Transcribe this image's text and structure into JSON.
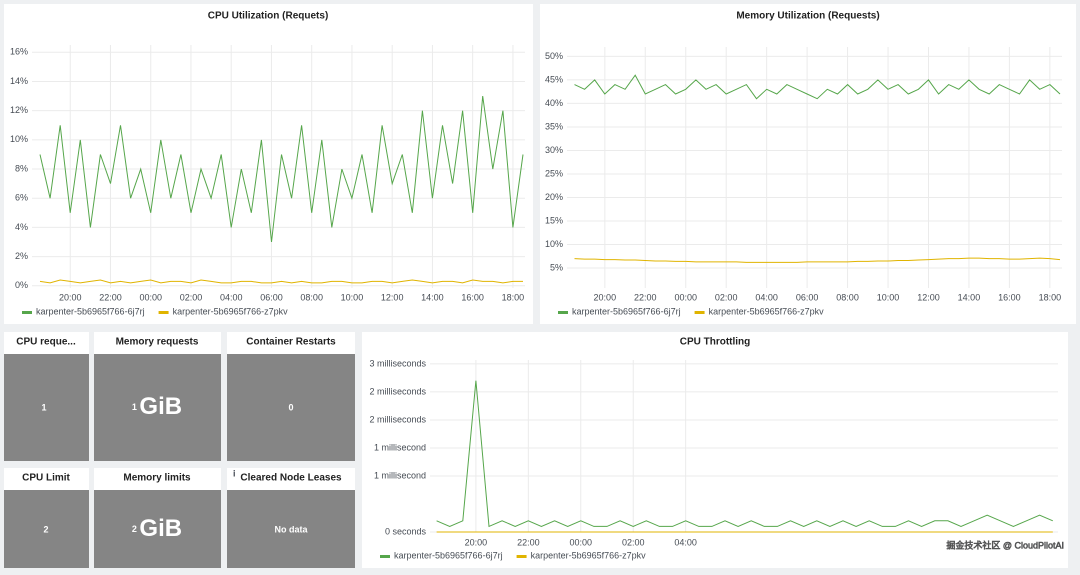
{
  "chart_data": [
    {
      "type": "line",
      "title": "CPU Utilization (Requets)",
      "x": [
        18.5,
        19,
        19.5,
        20,
        20.5,
        21,
        21.5,
        22,
        22.5,
        23,
        23.5,
        24,
        24.5,
        25,
        25.5,
        26,
        26.5,
        27,
        27.5,
        28,
        28.5,
        29,
        29.5,
        30,
        30.5,
        31,
        31.5,
        32,
        32.5,
        33,
        33.5,
        34,
        34.5,
        35,
        35.5,
        36,
        36.5,
        37,
        37.5,
        38,
        38.5,
        39,
        39.5,
        40,
        40.5,
        41,
        41.5,
        42,
        42.5
      ],
      "xlim": [
        18.1,
        42.6
      ],
      "xticks": [
        {
          "value": 20,
          "label": "20:00"
        },
        {
          "value": 22,
          "label": "22:00"
        },
        {
          "value": 24,
          "label": "00:00"
        },
        {
          "value": 26,
          "label": "02:00"
        },
        {
          "value": 28,
          "label": "04:00"
        },
        {
          "value": 30,
          "label": "06:00"
        },
        {
          "value": 32,
          "label": "08:00"
        },
        {
          "value": 34,
          "label": "10:00"
        },
        {
          "value": 36,
          "label": "12:00"
        },
        {
          "value": 38,
          "label": "14:00"
        },
        {
          "value": 40,
          "label": "16:00"
        },
        {
          "value": 42,
          "label": "18:00"
        }
      ],
      "ylim": [
        -0.15,
        16.5
      ],
      "yticks": [
        {
          "value": 0,
          "label": "0%"
        },
        {
          "value": 2,
          "label": "2%"
        },
        {
          "value": 4,
          "label": "4%"
        },
        {
          "value": 6,
          "label": "6%"
        },
        {
          "value": 8,
          "label": "8%"
        },
        {
          "value": 10,
          "label": "10%"
        },
        {
          "value": 12,
          "label": "12%"
        },
        {
          "value": 14,
          "label": "14%"
        },
        {
          "value": 16,
          "label": "16%"
        }
      ],
      "grid": true,
      "series": [
        {
          "name": "karpenter-5b6965f766-6j7rj",
          "color": "#56a64b",
          "values": [
            9,
            6,
            11,
            5,
            10,
            4,
            9,
            7,
            11,
            6,
            8,
            5,
            10,
            6,
            9,
            5,
            8,
            6,
            9,
            4,
            8,
            5,
            10,
            3,
            9,
            6,
            11,
            5,
            10,
            4,
            8,
            6,
            9,
            5,
            11,
            7,
            9,
            5,
            12,
            6,
            11,
            7,
            12,
            5,
            13,
            8,
            12,
            4,
            9
          ]
        },
        {
          "name": "karpenter-5b6965f766-z7pkv",
          "color": "#e0b400",
          "values": [
            0.3,
            0.2,
            0.4,
            0.3,
            0.2,
            0.3,
            0.4,
            0.2,
            0.3,
            0.2,
            0.3,
            0.4,
            0.2,
            0.3,
            0.3,
            0.2,
            0.4,
            0.3,
            0.2,
            0.2,
            0.3,
            0.3,
            0.2,
            0.2,
            0.3,
            0.2,
            0.3,
            0.2,
            0.2,
            0.3,
            0.3,
            0.2,
            0.2,
            0.3,
            0.3,
            0.2,
            0.3,
            0.4,
            0.3,
            0.2,
            0.3,
            0.3,
            0.2,
            0.4,
            0.3,
            0.3,
            0.2,
            0.3,
            0.3
          ]
        }
      ]
    },
    {
      "type": "line",
      "title": "Memory Utilization (Requests)",
      "x": [
        18.5,
        19,
        19.5,
        20,
        20.5,
        21,
        21.5,
        22,
        22.5,
        23,
        23.5,
        24,
        24.5,
        25,
        25.5,
        26,
        26.5,
        27,
        27.5,
        28,
        28.5,
        29,
        29.5,
        30,
        30.5,
        31,
        31.5,
        32,
        32.5,
        33,
        33.5,
        34,
        34.5,
        35,
        35.5,
        36,
        36.5,
        37,
        37.5,
        38,
        38.5,
        39,
        39.5,
        40,
        40.5,
        41,
        41.5,
        42,
        42.5
      ],
      "xlim": [
        18.13,
        42.6
      ],
      "xticks": [
        {
          "value": 20,
          "label": "20:00"
        },
        {
          "value": 22,
          "label": "22:00"
        },
        {
          "value": 24,
          "label": "00:00"
        },
        {
          "value": 26,
          "label": "02:00"
        },
        {
          "value": 28,
          "label": "04:00"
        },
        {
          "value": 30,
          "label": "06:00"
        },
        {
          "value": 32,
          "label": "08:00"
        },
        {
          "value": 34,
          "label": "10:00"
        },
        {
          "value": 36,
          "label": "12:00"
        },
        {
          "value": 38,
          "label": "14:00"
        },
        {
          "value": 40,
          "label": "16:00"
        },
        {
          "value": 42,
          "label": "18:00"
        }
      ],
      "ylim": [
        0.75,
        52
      ],
      "yticks": [
        {
          "value": 5,
          "label": "5%"
        },
        {
          "value": 10,
          "label": "10%"
        },
        {
          "value": 15,
          "label": "15%"
        },
        {
          "value": 20,
          "label": "20%"
        },
        {
          "value": 25,
          "label": "25%"
        },
        {
          "value": 30,
          "label": "30%"
        },
        {
          "value": 35,
          "label": "35%"
        },
        {
          "value": 40,
          "label": "40%"
        },
        {
          "value": 45,
          "label": "45%"
        },
        {
          "value": 50,
          "label": "50%"
        }
      ],
      "grid": true,
      "series": [
        {
          "name": "karpenter-5b6965f766-6j7rj",
          "color": "#56a64b",
          "values": [
            44,
            43,
            45,
            42,
            44,
            43,
            46,
            42,
            43,
            44,
            42,
            43,
            45,
            43,
            44,
            42,
            43,
            44,
            41,
            43,
            42,
            44,
            43,
            42,
            41,
            43,
            42,
            44,
            42,
            43,
            45,
            43,
            44,
            42,
            43,
            45,
            42,
            44,
            43,
            45,
            43,
            42,
            44,
            43,
            42,
            45,
            43,
            44,
            42
          ]
        },
        {
          "name": "karpenter-5b6965f766-z7pkv",
          "color": "#e0b400",
          "values": [
            7.0,
            6.9,
            6.9,
            6.8,
            6.8,
            6.7,
            6.7,
            6.6,
            6.5,
            6.5,
            6.4,
            6.4,
            6.3,
            6.3,
            6.3,
            6.3,
            6.3,
            6.2,
            6.2,
            6.2,
            6.2,
            6.2,
            6.2,
            6.3,
            6.3,
            6.3,
            6.3,
            6.3,
            6.4,
            6.4,
            6.5,
            6.5,
            6.6,
            6.6,
            6.7,
            6.8,
            6.9,
            7.0,
            7.0,
            7.1,
            7.1,
            7.0,
            7.0,
            6.9,
            6.9,
            7.0,
            7.1,
            7.0,
            6.8
          ]
        }
      ]
    },
    {
      "type": "line",
      "title": "CPU Throttling",
      "x": [
        18.5,
        19,
        19.5,
        20,
        20.5,
        21,
        21.5,
        22,
        22.5,
        23,
        23.5,
        24,
        24.5,
        25,
        25.5,
        26,
        26.5,
        27,
        27.5,
        28,
        28.5,
        29,
        29.5,
        30,
        30.5,
        31,
        31.5,
        32,
        32.5,
        33,
        33.5,
        34,
        34.5,
        35,
        35.5,
        36,
        36.5,
        37,
        37.5,
        38,
        38.5,
        39,
        39.5,
        40,
        40.5,
        41,
        41.5,
        42
      ],
      "xlim": [
        18.25,
        42.2
      ],
      "xticks": [
        {
          "value": 20,
          "label": "20:00"
        },
        {
          "value": 22,
          "label": "22:00"
        },
        {
          "value": 24,
          "label": "00:00"
        },
        {
          "value": 26,
          "label": "02:00"
        },
        {
          "value": 28,
          "label": "04:00"
        }
      ],
      "ylim": [
        0,
        0.00307
      ],
      "yticks": [
        {
          "value": 0,
          "label": "0 seconds"
        },
        {
          "value": 0.001,
          "label": "1 millisecond"
        },
        {
          "value": 0.0015,
          "label": "1 millisecond"
        },
        {
          "value": 0.002,
          "label": "2 milliseconds"
        },
        {
          "value": 0.0025,
          "label": "2 milliseconds"
        },
        {
          "value": 0.003,
          "label": "3 milliseconds"
        }
      ],
      "grid": true,
      "series": [
        {
          "name": "karpenter-5b6965f766-6j7rj",
          "color": "#56a64b",
          "values": [
            0.0002,
            0.0001,
            0.0002,
            0.0027,
            0.0001,
            0.0002,
            0.0001,
            0.0002,
            0.0001,
            0.0002,
            0.0001,
            0.0002,
            0.0001,
            0.0001,
            0.0002,
            0.0001,
            0.0002,
            0.0001,
            0.0001,
            0.0002,
            0.0001,
            0.0001,
            0.0002,
            0.0001,
            0.0002,
            0.0001,
            0.0001,
            0.0002,
            0.0001,
            0.0002,
            0.0001,
            0.0002,
            0.0001,
            0.0002,
            0.0001,
            0.0001,
            0.0002,
            0.0001,
            0.0002,
            0.0002,
            0.0001,
            0.0002,
            0.0003,
            0.0002,
            0.0001,
            0.0002,
            0.0003,
            0.0002
          ]
        },
        {
          "name": "karpenter-5b6965f766-z7pkv",
          "color": "#e0b400",
          "values": [
            0,
            0,
            0,
            0,
            0,
            0,
            0,
            0,
            0,
            0,
            0,
            0,
            0,
            0,
            0,
            0,
            0,
            0,
            0,
            0,
            0,
            0,
            0,
            0,
            0,
            0,
            0,
            0,
            0,
            0,
            0,
            0,
            0,
            0,
            0,
            0,
            0,
            0,
            0,
            0,
            0,
            0,
            0,
            0,
            0,
            0,
            0,
            0
          ]
        }
      ]
    }
  ],
  "stats": [
    {
      "title": "CPU reque...",
      "value": 1
    },
    {
      "title": "Memory requests",
      "value": 1,
      "unit": "GiB"
    },
    {
      "title": "Container Restarts",
      "value": 0
    },
    {
      "title": "CPU Limit",
      "value": 2
    },
    {
      "title": "Memory limits",
      "value": 2,
      "unit": "GiB"
    },
    {
      "title": "Cleared Node Leases",
      "value": "No data"
    }
  ],
  "watermark": "掘金技术社区 @ CloudPilotAI"
}
